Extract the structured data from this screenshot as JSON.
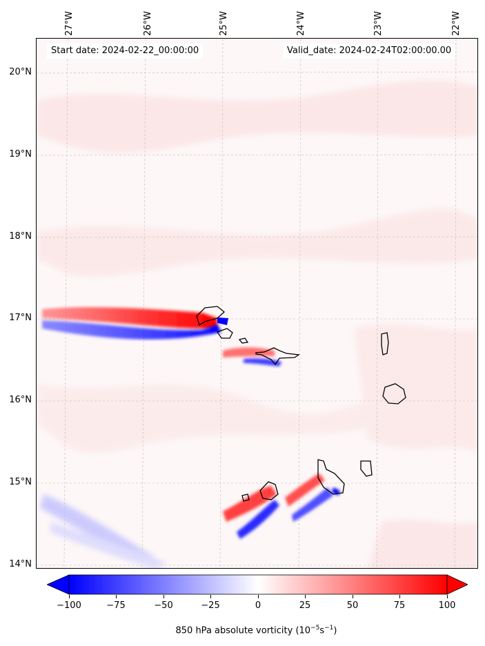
{
  "header": {
    "start_date": "Start date: 2024-02-22_00:00:00",
    "valid_date": "Valid_date: 2024-02-24T02:00:00.00"
  },
  "longitude_labels": [
    "27°W",
    "26°W",
    "25°W",
    "24°W",
    "23°W",
    "22°W"
  ],
  "latitude_labels": [
    "20°N",
    "19°N",
    "18°N",
    "17°N",
    "16°N",
    "15°N",
    "14°N"
  ],
  "colorbar": {
    "ticks": [
      "−100",
      "−75",
      "−50",
      "−25",
      "0",
      "25",
      "50",
      "75",
      "100"
    ],
    "label": "850 hPa absolute vorticity (10",
    "label_exp": "−5",
    "label_mid": "s",
    "label_exp2": "−1",
    "label_end": ")",
    "min_color": "#0000ff",
    "mid_color": "#ffffff",
    "max_color": "#ff0000"
  }
}
